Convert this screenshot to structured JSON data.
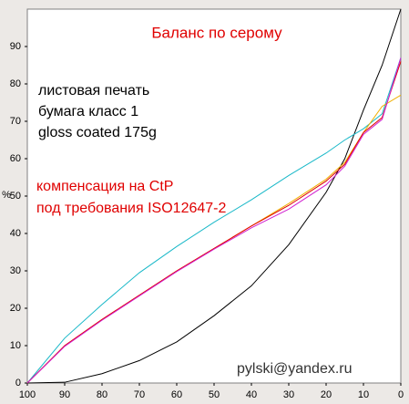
{
  "chart_data": {
    "type": "line",
    "title": "Баланс по серому",
    "ylabel": "%",
    "annotations": [
      {
        "text": "листовая печать",
        "color": "#000000"
      },
      {
        "text": "бумага класс 1",
        "color": "#000000"
      },
      {
        "text": "gloss coated 175g",
        "color": "#000000"
      },
      {
        "text": "компенсация на CtP",
        "color": "#e00000"
      },
      {
        "text": "под требования ISO12647-2",
        "color": "#e00000"
      },
      {
        "text": "pylski@yandex.ru",
        "color": "#333333"
      }
    ],
    "x": [
      100,
      90,
      80,
      70,
      60,
      50,
      40,
      30,
      20,
      15,
      10,
      5,
      0
    ],
    "series": [
      {
        "color": "#000000",
        "values": [
          0,
          0.2,
          2.5,
          6,
          11,
          18,
          26,
          37,
          51,
          60,
          73,
          85,
          100
        ]
      },
      {
        "color": "#18b8c8",
        "values": [
          0,
          12,
          21,
          29.5,
          36.5,
          43,
          49,
          55.5,
          61.5,
          65,
          68,
          72,
          87
        ]
      },
      {
        "color": "#f0b000",
        "values": [
          0,
          10,
          17,
          23.5,
          30,
          36,
          42,
          48,
          54.5,
          59,
          67,
          74,
          77
        ]
      },
      {
        "color": "#e00000",
        "values": [
          0,
          10,
          17,
          23.5,
          30,
          36,
          42,
          47.5,
          54,
          58.5,
          67,
          71,
          86
        ]
      },
      {
        "color": "#d020d0",
        "values": [
          0,
          9.8,
          16.8,
          23.3,
          29.8,
          35.8,
          41.5,
          46.5,
          53,
          58,
          66.5,
          70.5,
          87
        ]
      }
    ],
    "xlim": [
      100,
      0
    ],
    "xticks": [
      100,
      90,
      80,
      70,
      60,
      50,
      40,
      30,
      20,
      10,
      0
    ],
    "ylim": [
      0,
      100
    ],
    "yticks": [
      0,
      10,
      20,
      30,
      40,
      50,
      60,
      70,
      80,
      90
    ]
  }
}
